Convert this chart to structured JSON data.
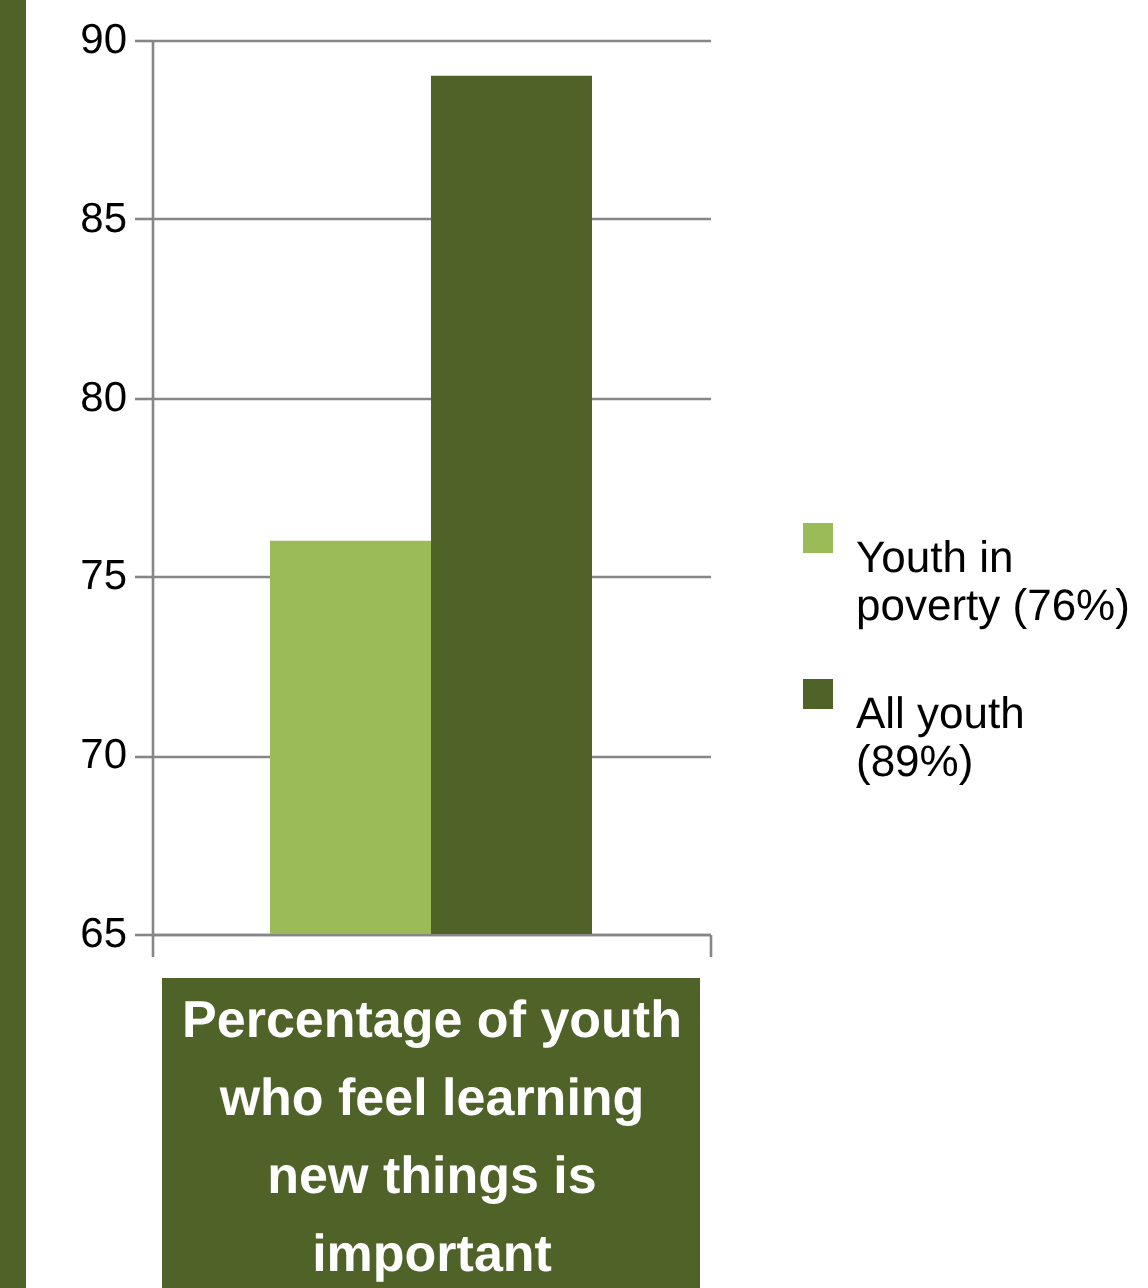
{
  "chart_data": {
    "type": "bar",
    "categories": [
      "Percentage of youth who feel learning new things is important"
    ],
    "series": [
      {
        "name": "Youth in poverty (76%)",
        "color": "#9bbb59",
        "values": [
          76
        ]
      },
      {
        "name": "All youth (89%)",
        "color": "#4f6228",
        "values": [
          89
        ]
      }
    ],
    "ylim": [
      65,
      90
    ],
    "yticks": [
      65,
      70,
      75,
      80,
      85,
      90
    ],
    "grid": "y",
    "legend": "right"
  }
}
